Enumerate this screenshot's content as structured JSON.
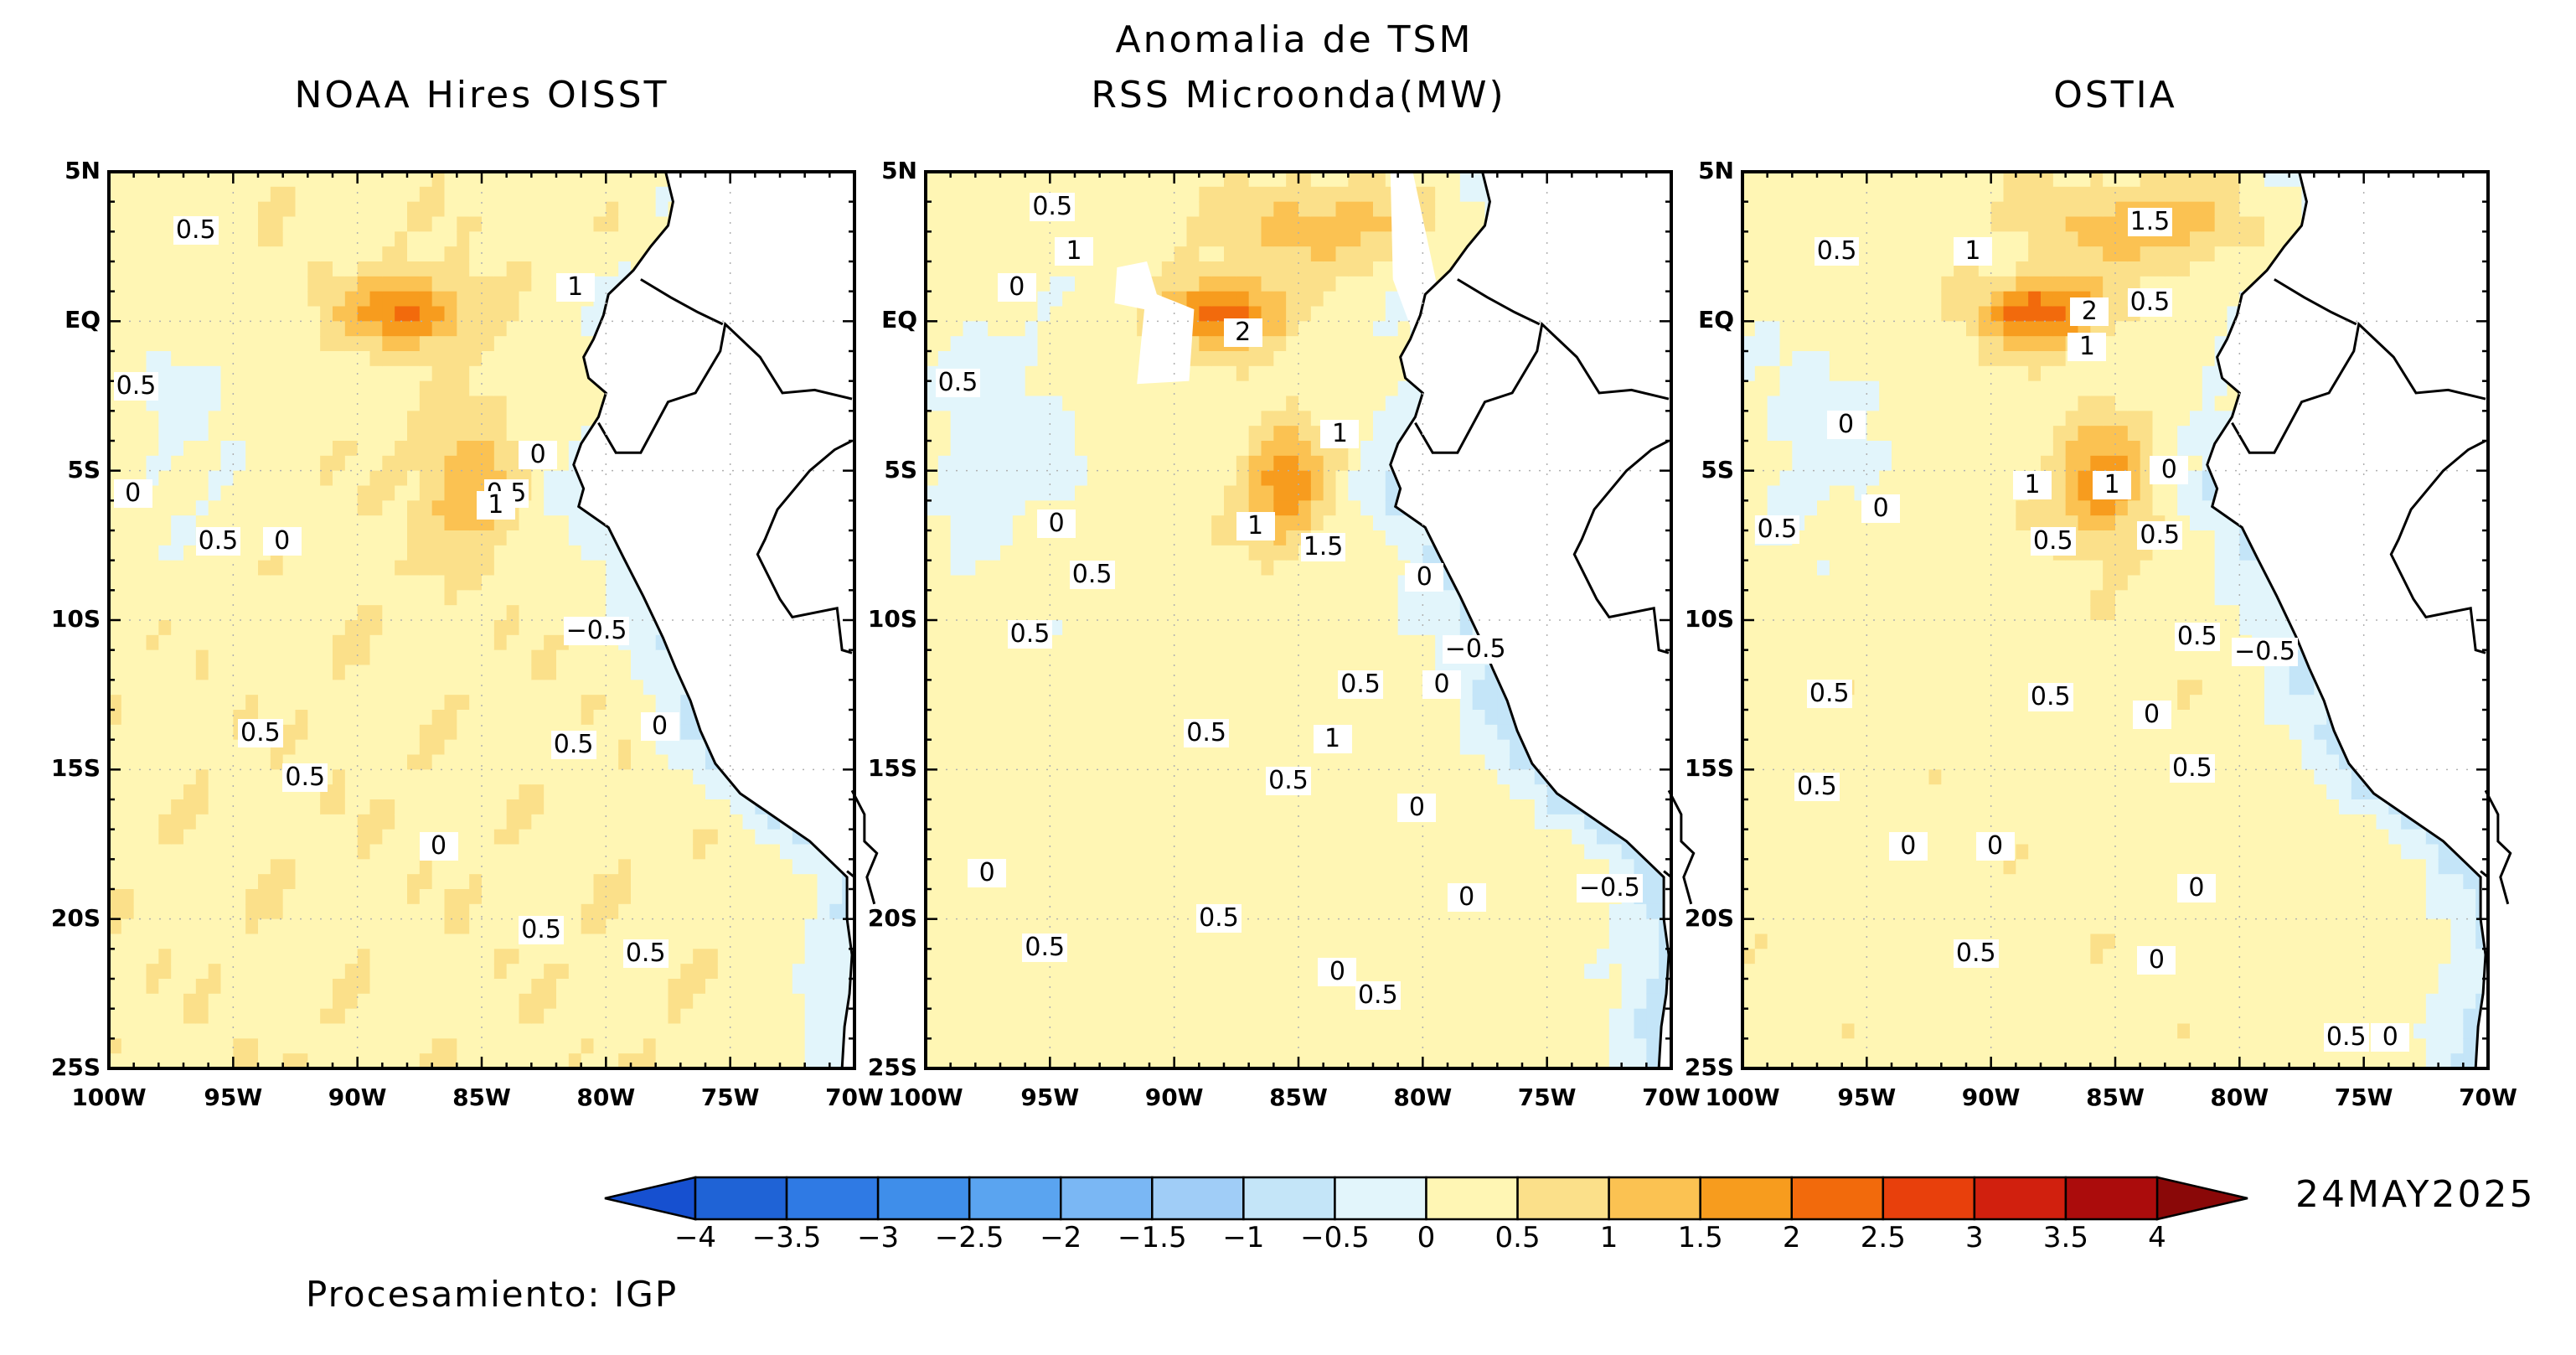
{
  "figure": {
    "title_line1": "Anomalia de TSM",
    "date": "24MAY2025",
    "credit": "Procesamiento: IGP"
  },
  "colors": {
    "neg_levels": [
      "#1f63d6",
      "#2f7ae4",
      "#3f8eea",
      "#5aa4f0",
      "#7ab7f4",
      "#a0cdf7",
      "#c4e5f8",
      "#e2f5fb"
    ],
    "pos_levels": [
      "#fff6b4",
      "#fbe08a",
      "#fbc252",
      "#f79c1e",
      "#f26a0c",
      "#e8400c",
      "#d1200e",
      "#ab0c0c"
    ],
    "land": "#ffffff",
    "contour": "#000000",
    "missing": "#ffffff"
  },
  "panels": [
    {
      "title": "NOAA Hires OISST",
      "lat_ticks": [
        "5N",
        "EQ",
        "5S",
        "10S",
        "15S",
        "20S",
        "25S"
      ],
      "lon_ticks": [
        "100W",
        "95W",
        "90W",
        "85W",
        "80W",
        "75W",
        "70W"
      ],
      "contour_labels": [
        {
          "text": "0.5",
          "lon": -96.6,
          "lat": 3.0
        },
        {
          "text": "1",
          "lon": -81.2,
          "lat": 1.1
        },
        {
          "text": "0.5",
          "lon": -99.0,
          "lat": -2.2
        },
        {
          "text": "0",
          "lon": -82.7,
          "lat": -4.5
        },
        {
          "text": "0",
          "lon": -99.0,
          "lat": -5.8
        },
        {
          "text": "0.5",
          "lon": -84.1,
          "lat": -5.8
        },
        {
          "text": "1",
          "lon": -84.4,
          "lat": -6.2
        },
        {
          "text": "0.5",
          "lon": -95.7,
          "lat": -7.4
        },
        {
          "text": "0",
          "lon": -93.0,
          "lat": -7.4
        },
        {
          "text": "-0.5",
          "lon": -80.9,
          "lat": -10.4
        },
        {
          "text": "0.5",
          "lon": -94.0,
          "lat": -13.8
        },
        {
          "text": "0",
          "lon": -77.8,
          "lat": -13.6
        },
        {
          "text": "0.5",
          "lon": -81.4,
          "lat": -14.2
        },
        {
          "text": "0.5",
          "lon": -92.2,
          "lat": -15.3
        },
        {
          "text": "0",
          "lon": -86.7,
          "lat": -17.6
        },
        {
          "text": "0.5",
          "lon": -82.7,
          "lat": -20.4
        },
        {
          "text": "0.5",
          "lon": -78.5,
          "lat": -21.2
        }
      ]
    },
    {
      "title": "RSS Microonda(MW)",
      "lat_ticks": [
        "5N",
        "EQ",
        "5S",
        "10S",
        "15S",
        "20S",
        "25S"
      ],
      "lon_ticks": [
        "100W",
        "95W",
        "90W",
        "85W",
        "80W",
        "75W",
        "70W"
      ],
      "contour_labels": [
        {
          "text": "0.5",
          "lon": -95.0,
          "lat": 3.8
        },
        {
          "text": "1",
          "lon": -94.0,
          "lat": 2.3
        },
        {
          "text": "0",
          "lon": -96.3,
          "lat": 1.1
        },
        {
          "text": "2",
          "lon": -87.2,
          "lat": -0.4
        },
        {
          "text": "0.5",
          "lon": -98.8,
          "lat": -2.1
        },
        {
          "text": "1",
          "lon": -83.3,
          "lat": -3.8
        },
        {
          "text": "0",
          "lon": -94.7,
          "lat": -6.8
        },
        {
          "text": "1",
          "lon": -86.7,
          "lat": -6.9
        },
        {
          "text": "1.5",
          "lon": -84.1,
          "lat": -7.6
        },
        {
          "text": "0.5",
          "lon": -93.4,
          "lat": -8.5
        },
        {
          "text": "0",
          "lon": -79.9,
          "lat": -8.6
        },
        {
          "text": "0.5",
          "lon": -95.9,
          "lat": -10.5
        },
        {
          "text": "-0.5",
          "lon": -78.4,
          "lat": -11.0
        },
        {
          "text": "0.5",
          "lon": -82.6,
          "lat": -12.2
        },
        {
          "text": "0",
          "lon": -79.2,
          "lat": -12.2
        },
        {
          "text": "0.5",
          "lon": -88.8,
          "lat": -13.8
        },
        {
          "text": "1",
          "lon": -83.6,
          "lat": -14.0
        },
        {
          "text": "0.5",
          "lon": -85.5,
          "lat": -15.4
        },
        {
          "text": "0",
          "lon": -80.2,
          "lat": -16.3
        },
        {
          "text": "0",
          "lon": -97.5,
          "lat": -18.5
        },
        {
          "text": "0",
          "lon": -78.2,
          "lat": -19.3
        },
        {
          "text": "-0.5",
          "lon": -73.0,
          "lat": -19.0
        },
        {
          "text": "0.5",
          "lon": -88.3,
          "lat": -20.0
        },
        {
          "text": "0.5",
          "lon": -95.3,
          "lat": -21.0
        },
        {
          "text": "0",
          "lon": -83.4,
          "lat": -21.8
        },
        {
          "text": "0.5",
          "lon": -81.9,
          "lat": -22.6
        }
      ]
    },
    {
      "title": "OSTIA",
      "lat_ticks": [
        "5N",
        "EQ",
        "5S",
        "10S",
        "15S",
        "20S",
        "25S"
      ],
      "lon_ticks": [
        "100W",
        "95W",
        "90W",
        "85W",
        "80W",
        "75W",
        "70W"
      ],
      "contour_labels": [
        {
          "text": "1.5",
          "lon": -83.7,
          "lat": 3.3
        },
        {
          "text": "0.5",
          "lon": -96.3,
          "lat": 2.3
        },
        {
          "text": "1",
          "lon": -90.7,
          "lat": 2.3
        },
        {
          "text": "2",
          "lon": -86.0,
          "lat": 0.3
        },
        {
          "text": "0.5",
          "lon": -83.7,
          "lat": 0.6
        },
        {
          "text": "1",
          "lon": -86.1,
          "lat": -0.9
        },
        {
          "text": "0",
          "lon": -95.8,
          "lat": -3.5
        },
        {
          "text": "1",
          "lon": -88.3,
          "lat": -5.5
        },
        {
          "text": "1",
          "lon": -85.1,
          "lat": -5.5
        },
        {
          "text": "0",
          "lon": -82.8,
          "lat": -5.0
        },
        {
          "text": "0.5",
          "lon": -98.7,
          "lat": -7.0
        },
        {
          "text": "0",
          "lon": -94.4,
          "lat": -6.3
        },
        {
          "text": "0.5",
          "lon": -87.6,
          "lat": -7.4
        },
        {
          "text": "0.5",
          "lon": -83.3,
          "lat": -7.2
        },
        {
          "text": "0.5",
          "lon": -81.8,
          "lat": -10.6
        },
        {
          "text": "-0.5",
          "lon": -79.5,
          "lat": -11.1
        },
        {
          "text": "0.5",
          "lon": -96.6,
          "lat": -12.5
        },
        {
          "text": "0.5",
          "lon": -87.7,
          "lat": -12.6
        },
        {
          "text": "0",
          "lon": -83.5,
          "lat": -13.2
        },
        {
          "text": "0.5",
          "lon": -82.0,
          "lat": -15.0
        },
        {
          "text": "0.5",
          "lon": -97.1,
          "lat": -15.6
        },
        {
          "text": "0",
          "lon": -93.3,
          "lat": -17.6
        },
        {
          "text": "0",
          "lon": -89.8,
          "lat": -17.6
        },
        {
          "text": "0",
          "lon": -81.7,
          "lat": -19.0
        },
        {
          "text": "0.5",
          "lon": -90.7,
          "lat": -21.2
        },
        {
          "text": "0",
          "lon": -83.3,
          "lat": -21.4
        },
        {
          "text": "0.5",
          "lon": -75.8,
          "lat": -24.0
        },
        {
          "text": "0",
          "lon": -73.9,
          "lat": -24.0
        }
      ]
    }
  ],
  "colorbar": {
    "labels": [
      "-4",
      "-3.5",
      "-3",
      "-2.5",
      "-2",
      "-1.5",
      "-1",
      "-0.5",
      "0",
      "0.5",
      "1",
      "1.5",
      "2",
      "2.5",
      "3",
      "3.5",
      "4"
    ]
  }
}
